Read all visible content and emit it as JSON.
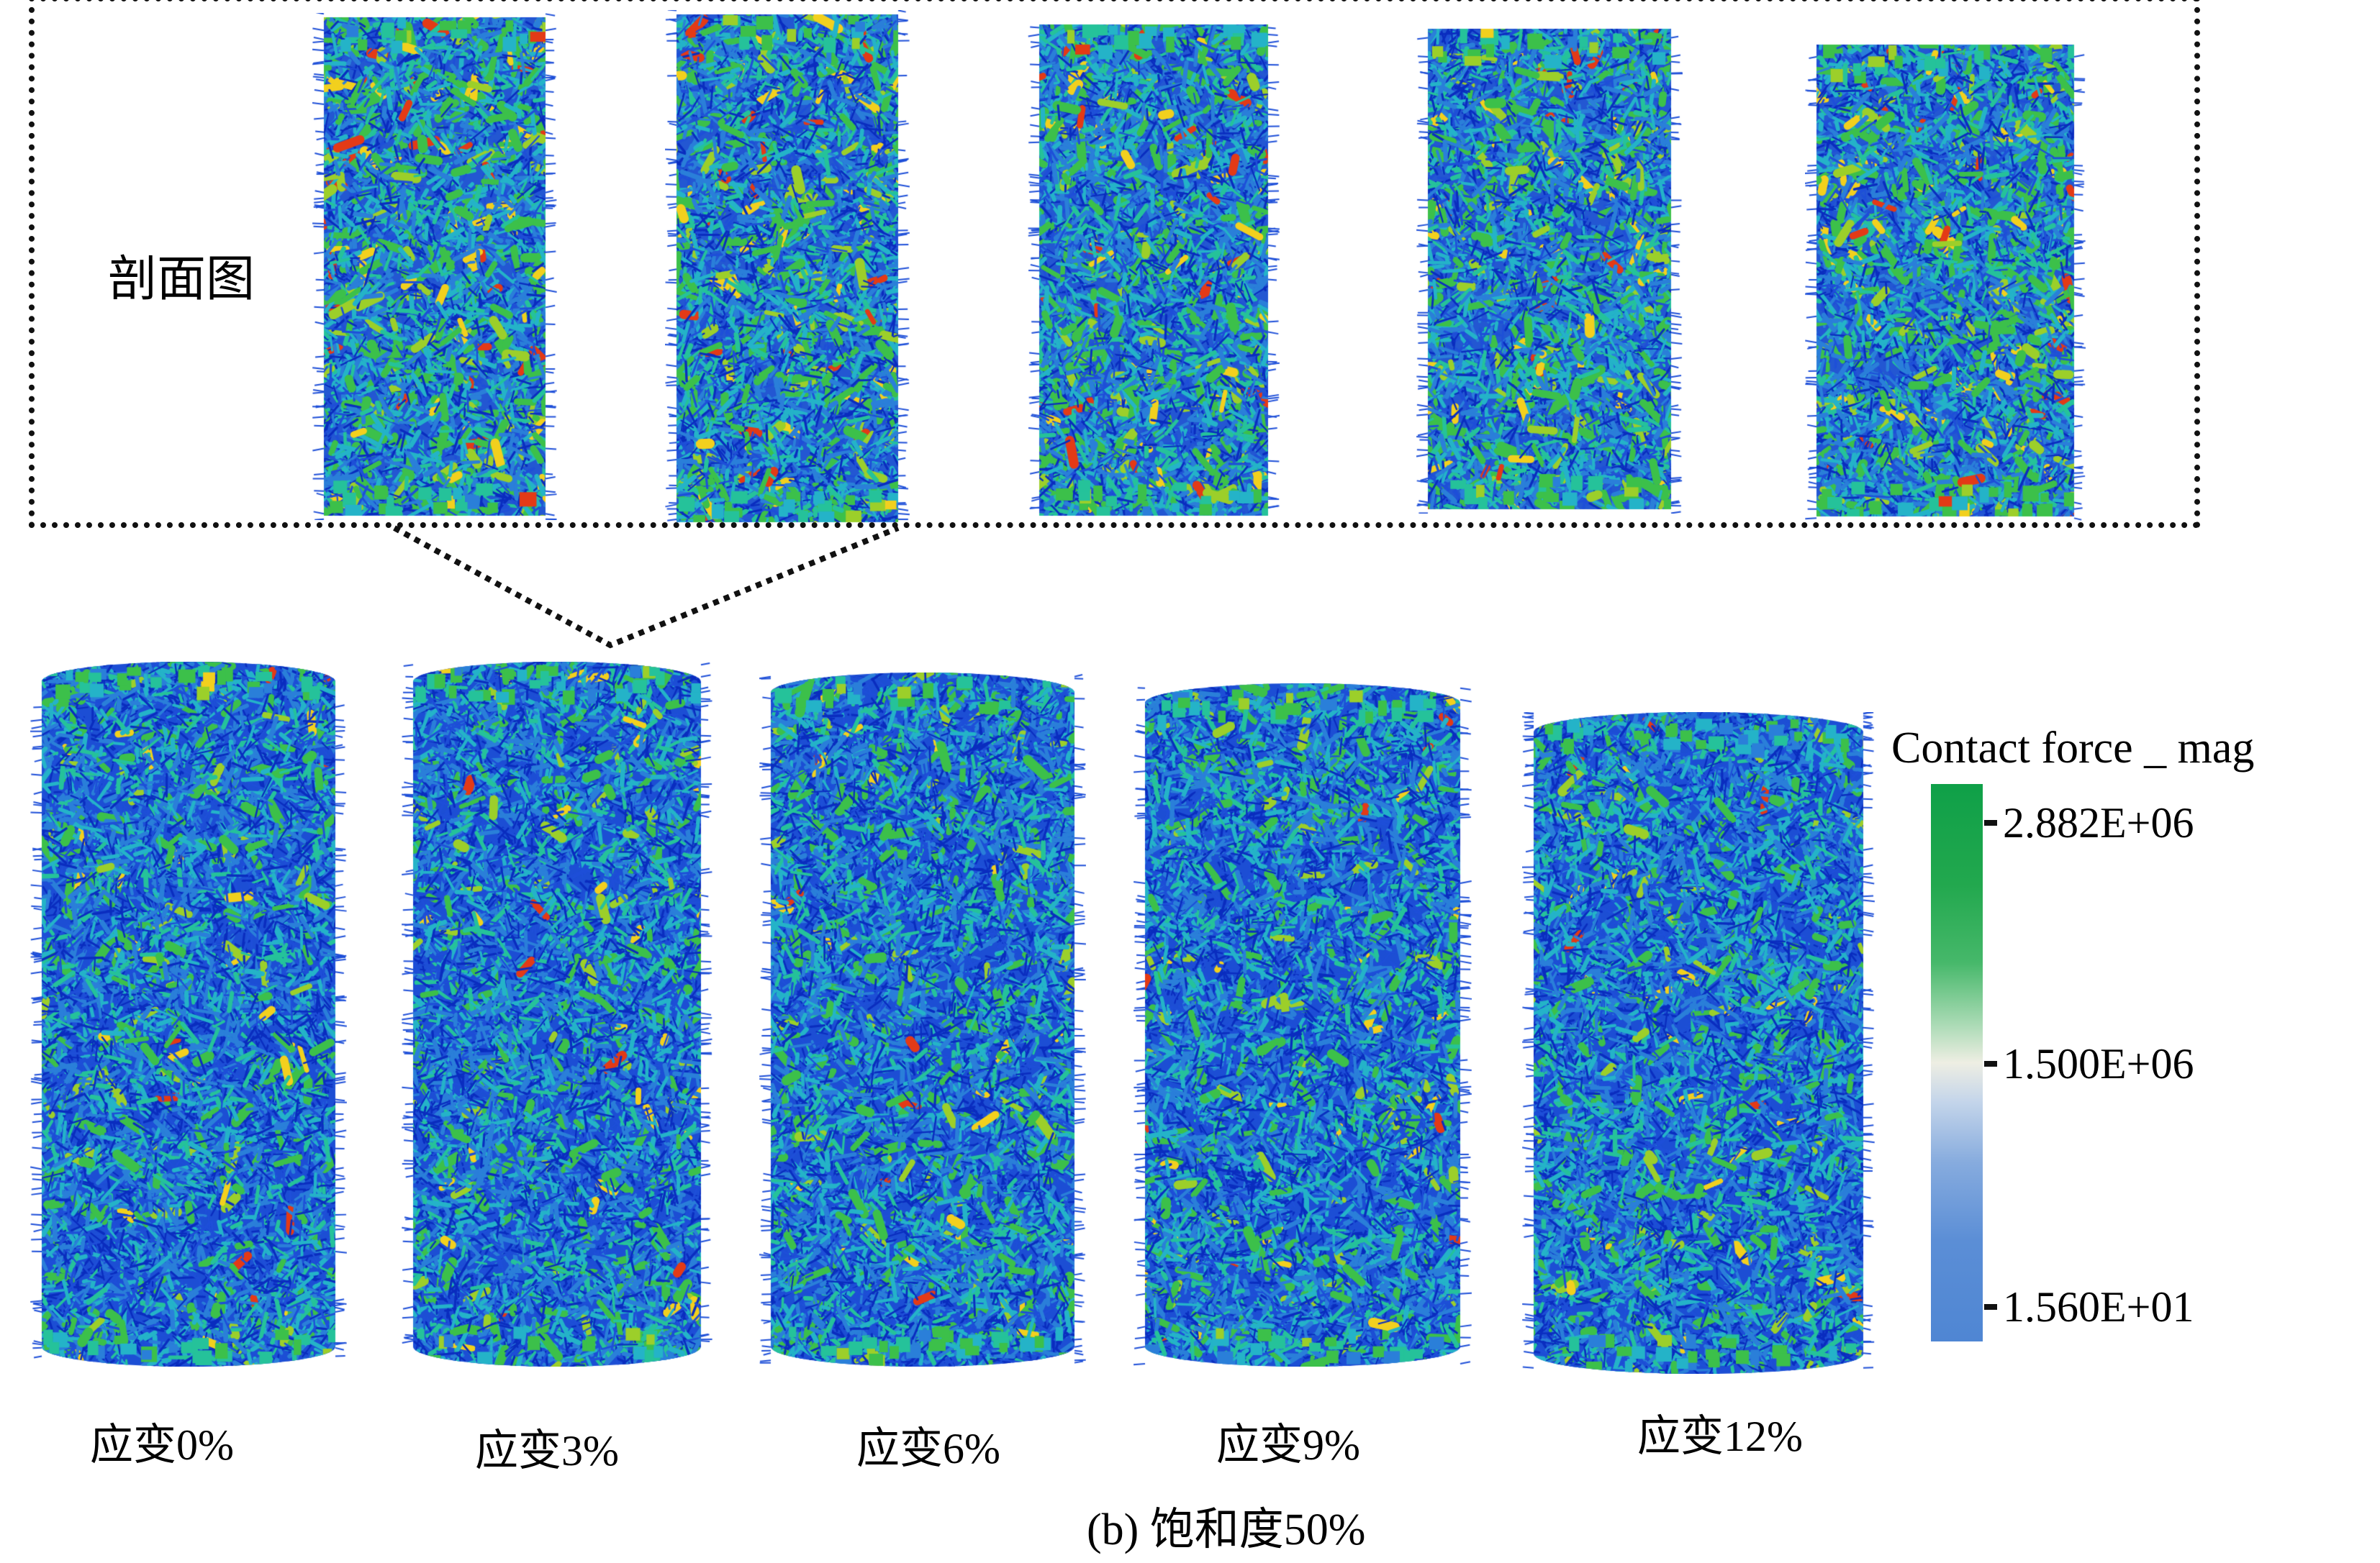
{
  "inset": {
    "label": "剖面图"
  },
  "strain_labels": [
    "应变0%",
    "应变3%",
    "应变6%",
    "应变9%",
    "应变12%"
  ],
  "caption": "(b) 饱和度50%",
  "legend": {
    "title": "Contact force _ mag",
    "ticks": [
      "2.882E+06",
      "1.500E+06",
      "1.560E+01"
    ],
    "colors": {
      "high": "#0fa048",
      "mid": "#eeeee3",
      "low": "#4f86d3"
    }
  },
  "network_colors": [
    "#0a2dbf",
    "#1e4fd8",
    "#2a7fd9",
    "#24b3c8",
    "#25c29a",
    "#3cc04a",
    "#9ccf2a",
    "#f2d01e",
    "#e33a16"
  ]
}
